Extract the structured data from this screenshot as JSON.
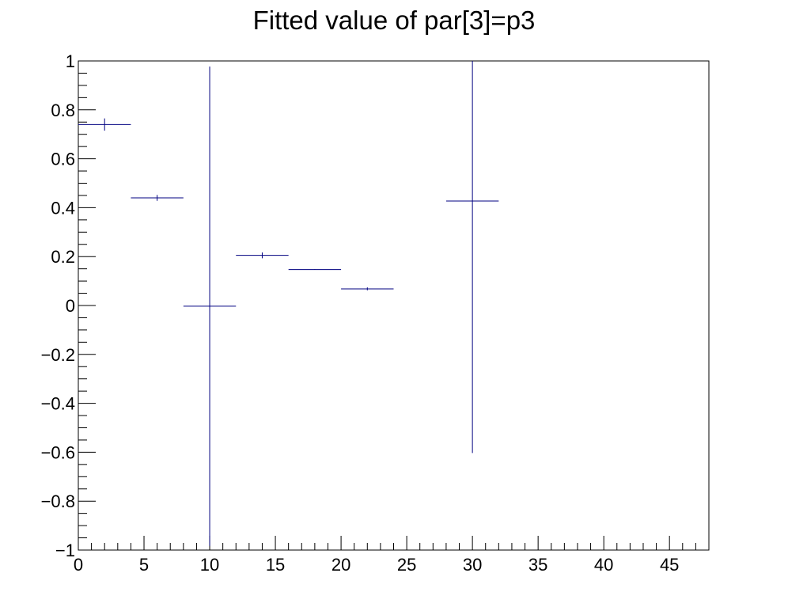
{
  "chart_data": {
    "type": "scatter",
    "title": "Fitted value of par[3]=p3",
    "xlabel": "",
    "ylabel": "",
    "xlim": [
      0,
      48
    ],
    "ylim": [
      -1,
      1
    ],
    "x_major_ticks": [
      0,
      5,
      10,
      15,
      20,
      25,
      30,
      35,
      40,
      45
    ],
    "x_tick_labels": [
      "0",
      "5",
      "10",
      "15",
      "20",
      "25",
      "30",
      "35",
      "40",
      "45"
    ],
    "y_major_ticks": [
      -1,
      -0.8,
      -0.6,
      -0.4,
      -0.2,
      0,
      0.2,
      0.4,
      0.6,
      0.8,
      1
    ],
    "y_tick_labels": [
      "−1",
      "−0.8",
      "−0.6",
      "−0.4",
      "−0.2",
      "0",
      "0.2",
      "0.4",
      "0.6",
      "0.8",
      "1"
    ],
    "grid": false,
    "legend": "none",
    "marker_color": "#000080",
    "points": [
      {
        "x": 2,
        "xerr": 2,
        "y": 0.74,
        "yerr": 0.025
      },
      {
        "x": 6,
        "xerr": 2,
        "y": 0.44,
        "yerr": 0.012
      },
      {
        "x": 10,
        "xerr": 2,
        "y": -0.003,
        "yerr": 0.98
      },
      {
        "x": 14,
        "xerr": 2,
        "y": 0.205,
        "yerr": 0.012
      },
      {
        "x": 18,
        "xerr": 2,
        "y": 0.147,
        "yerr": 0.001
      },
      {
        "x": 22,
        "xerr": 2,
        "y": 0.068,
        "yerr": 0.006
      },
      {
        "x": 30,
        "xerr": 2,
        "y": 0.427,
        "yerr": 1.03
      }
    ]
  }
}
